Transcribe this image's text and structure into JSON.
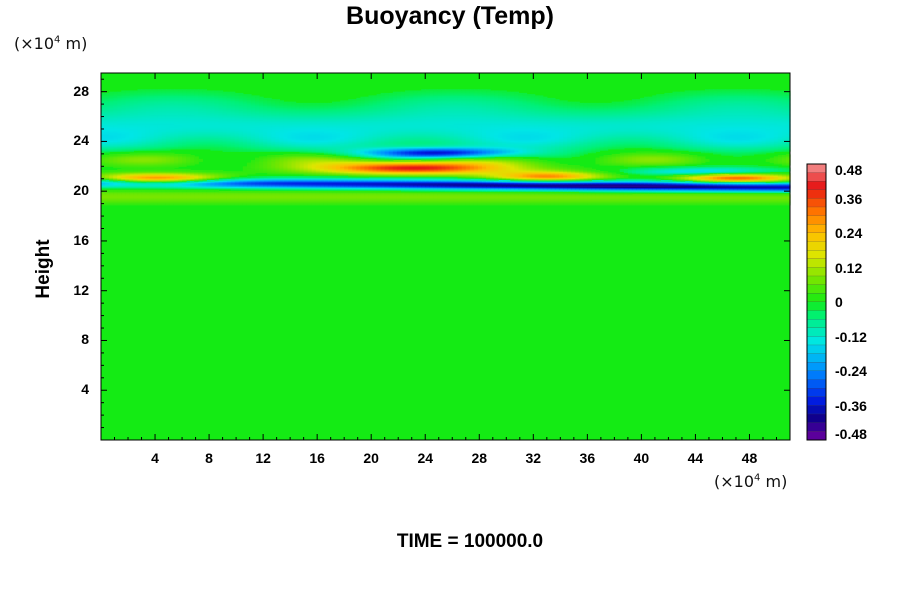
{
  "chart_data": {
    "type": "heatmap",
    "title": "Buoyancy (Temp)",
    "ylabel": "Height",
    "x_unit_prefix": "(×10",
    "x_unit_exp": "4",
    "x_unit_suffix": " m)",
    "y_unit_prefix": "(×10",
    "y_unit_exp": "4",
    "y_unit_suffix": " m)",
    "xlim": [
      0,
      51
    ],
    "ylim": [
      0,
      29.5
    ],
    "x_ticks": [
      4,
      8,
      12,
      16,
      20,
      24,
      28,
      32,
      36,
      40,
      44,
      48
    ],
    "y_ticks": [
      4,
      8,
      12,
      16,
      20,
      24,
      28
    ],
    "colorbar": {
      "range": [
        -0.48,
        0.48
      ],
      "tick_labels": [
        "0.48",
        "0.36",
        "0.24",
        "0.12",
        "0",
        "-0.12",
        "-0.24",
        "-0.36",
        "-0.48"
      ],
      "tick_values": [
        0.48,
        0.36,
        0.24,
        0.12,
        0,
        -0.12,
        -0.24,
        -0.36,
        -0.48
      ]
    },
    "features": [
      {
        "description": "strong negative band",
        "x_range": [
          0,
          51
        ],
        "y": 20.4,
        "value": -0.44
      },
      {
        "description": "positive band west",
        "x_range": [
          0,
          10
        ],
        "y": 21.0,
        "value": 0.42
      },
      {
        "description": "positive band central",
        "x_range": [
          16,
          30
        ],
        "y": 21.8,
        "value": 0.4
      },
      {
        "description": "negative band upper",
        "x_range": [
          20,
          30
        ],
        "y": 23.0,
        "value": -0.36
      },
      {
        "description": "positive band east",
        "x_range": [
          42,
          51
        ],
        "y": 21.0,
        "value": 0.36
      },
      {
        "description": "weak negative layer",
        "x_range": [
          0,
          51
        ],
        "y": 25.0,
        "value": -0.12
      }
    ]
  },
  "footer": {
    "time_label": "TIME = 100000.0"
  }
}
